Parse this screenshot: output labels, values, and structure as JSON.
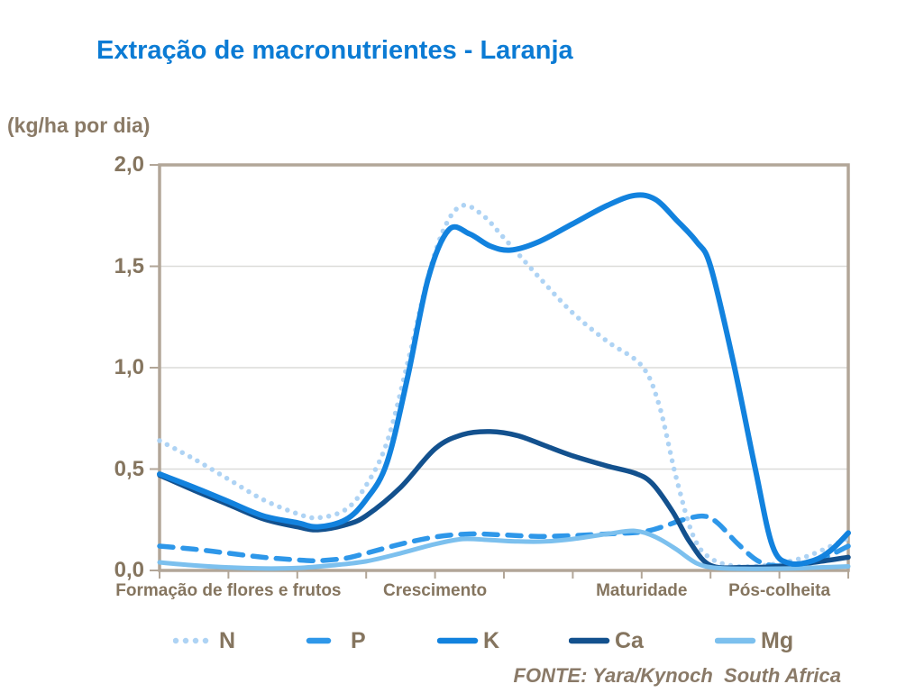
{
  "chart": {
    "title": "Extração de macronutrientes - Laranja",
    "unit_label": "(kg/ha por dia)",
    "source": "FONTE: Yara/Kynoch  South Africa",
    "colors": {
      "title": "#0b7bd4",
      "axis": "#b2a698",
      "grid": "#dcdcd9",
      "tick_label": "#85755f",
      "category_label": "#85755f",
      "unit_label": "#8a7a66",
      "legend_label": "#85755f",
      "source": "#8a7a68"
    },
    "chart_data": {
      "type": "line",
      "title": "Extração de macronutrientes - Laranja",
      "ylabel": "(kg/ha por dia)",
      "ylim": [
        0,
        2
      ],
      "grid": "horizontal",
      "legend_position": "bottom",
      "x_unit": "axis-tick-index (0-10), 11 ticks across growth season",
      "x_tick_count": 11,
      "y_tick_values": [
        2,
        1.5,
        1,
        0.5,
        0
      ],
      "y_tick_labels": [
        "2,0",
        "1,5",
        "1,0",
        "0,5",
        "0,0"
      ],
      "x_categories": [
        "Formação de flores e frutos",
        "Crescimento",
        "Maturidade",
        "Pós-colheita"
      ],
      "x_category_tick_centers": [
        1,
        4,
        7,
        9
      ],
      "series": [
        {
          "name": "N",
          "style": "dotted",
          "color": "#aed3f4",
          "width": 5.5,
          "points": [
            [
              0,
              0.64
            ],
            [
              0.5,
              0.55
            ],
            [
              1,
              0.45
            ],
            [
              1.5,
              0.35
            ],
            [
              2,
              0.28
            ],
            [
              2.3,
              0.26
            ],
            [
              2.7,
              0.3
            ],
            [
              3,
              0.42
            ],
            [
              3.3,
              0.63
            ],
            [
              3.6,
              1.02
            ],
            [
              3.9,
              1.45
            ],
            [
              4.15,
              1.7
            ],
            [
              4.4,
              1.8
            ],
            [
              4.7,
              1.75
            ],
            [
              5,
              1.64
            ],
            [
              5.5,
              1.45
            ],
            [
              6,
              1.27
            ],
            [
              6.5,
              1.13
            ],
            [
              7,
              1.01
            ],
            [
              7.25,
              0.82
            ],
            [
              7.5,
              0.46
            ],
            [
              7.75,
              0.17
            ],
            [
              8,
              0.06
            ],
            [
              8.4,
              0.02
            ],
            [
              8.9,
              0.03
            ],
            [
              9.4,
              0.07
            ],
            [
              10,
              0.16
            ]
          ]
        },
        {
          "name": "P",
          "style": "dashed",
          "color": "#2e97e9",
          "width": 5.5,
          "points": [
            [
              0,
              0.12
            ],
            [
              0.5,
              0.105
            ],
            [
              1,
              0.085
            ],
            [
              1.5,
              0.065
            ],
            [
              2,
              0.052
            ],
            [
              2.3,
              0.048
            ],
            [
              2.7,
              0.06
            ],
            [
              3,
              0.085
            ],
            [
              3.5,
              0.13
            ],
            [
              4,
              0.165
            ],
            [
              4.5,
              0.18
            ],
            [
              5,
              0.175
            ],
            [
              5.5,
              0.168
            ],
            [
              6,
              0.172
            ],
            [
              6.5,
              0.18
            ],
            [
              7,
              0.19
            ],
            [
              7.3,
              0.215
            ],
            [
              7.6,
              0.25
            ],
            [
              7.9,
              0.268
            ],
            [
              8.1,
              0.235
            ],
            [
              8.4,
              0.13
            ],
            [
              8.7,
              0.045
            ],
            [
              9,
              0.022
            ],
            [
              9.4,
              0.035
            ],
            [
              9.7,
              0.07
            ],
            [
              10,
              0.12
            ]
          ]
        },
        {
          "name": "K",
          "style": "solid",
          "color": "#1282de",
          "width": 6,
          "points": [
            [
              0,
              0.475
            ],
            [
              0.5,
              0.41
            ],
            [
              1,
              0.34
            ],
            [
              1.5,
              0.27
            ],
            [
              2,
              0.235
            ],
            [
              2.3,
              0.215
            ],
            [
              2.7,
              0.25
            ],
            [
              3,
              0.35
            ],
            [
              3.3,
              0.53
            ],
            [
              3.6,
              0.95
            ],
            [
              3.9,
              1.44
            ],
            [
              4.2,
              1.68
            ],
            [
              4.5,
              1.66
            ],
            [
              4.8,
              1.6
            ],
            [
              5.1,
              1.58
            ],
            [
              5.5,
              1.62
            ],
            [
              6,
              1.71
            ],
            [
              6.5,
              1.8
            ],
            [
              6.9,
              1.85
            ],
            [
              7.2,
              1.83
            ],
            [
              7.5,
              1.73
            ],
            [
              7.8,
              1.62
            ],
            [
              8,
              1.5
            ],
            [
              8.33,
              1.03
            ],
            [
              8.65,
              0.5
            ],
            [
              8.9,
              0.12
            ],
            [
              9.15,
              0.035
            ],
            [
              9.5,
              0.05
            ],
            [
              9.75,
              0.1
            ],
            [
              10,
              0.185
            ]
          ]
        },
        {
          "name": "Ca",
          "style": "solid",
          "color": "#13518e",
          "width": 5.5,
          "points": [
            [
              0,
              0.47
            ],
            [
              0.5,
              0.395
            ],
            [
              1,
              0.325
            ],
            [
              1.5,
              0.255
            ],
            [
              2,
              0.215
            ],
            [
              2.3,
              0.2
            ],
            [
              2.7,
              0.225
            ],
            [
              3,
              0.27
            ],
            [
              3.5,
              0.41
            ],
            [
              4,
              0.6
            ],
            [
              4.4,
              0.67
            ],
            [
              4.8,
              0.685
            ],
            [
              5.2,
              0.665
            ],
            [
              5.6,
              0.615
            ],
            [
              6,
              0.565
            ],
            [
              6.5,
              0.515
            ],
            [
              6.9,
              0.48
            ],
            [
              7.15,
              0.43
            ],
            [
              7.45,
              0.29
            ],
            [
              7.7,
              0.14
            ],
            [
              8,
              0.025
            ],
            [
              8.5,
              0.015
            ],
            [
              9,
              0.02
            ],
            [
              9.5,
              0.04
            ],
            [
              10,
              0.065
            ]
          ]
        },
        {
          "name": "Mg",
          "style": "solid",
          "color": "#7cc0ee",
          "width": 5,
          "points": [
            [
              0,
              0.04
            ],
            [
              0.5,
              0.025
            ],
            [
              1,
              0.015
            ],
            [
              1.5,
              0.01
            ],
            [
              2,
              0.012
            ],
            [
              2.5,
              0.025
            ],
            [
              3,
              0.045
            ],
            [
              3.5,
              0.085
            ],
            [
              4,
              0.13
            ],
            [
              4.4,
              0.155
            ],
            [
              4.8,
              0.15
            ],
            [
              5.2,
              0.143
            ],
            [
              5.6,
              0.143
            ],
            [
              6,
              0.155
            ],
            [
              6.5,
              0.18
            ],
            [
              6.9,
              0.195
            ],
            [
              7.2,
              0.165
            ],
            [
              7.5,
              0.105
            ],
            [
              7.8,
              0.035
            ],
            [
              8.1,
              0.012
            ],
            [
              8.6,
              0.008
            ],
            [
              9.2,
              0.01
            ],
            [
              9.6,
              0.015
            ],
            [
              10,
              0.02
            ]
          ]
        }
      ]
    }
  }
}
